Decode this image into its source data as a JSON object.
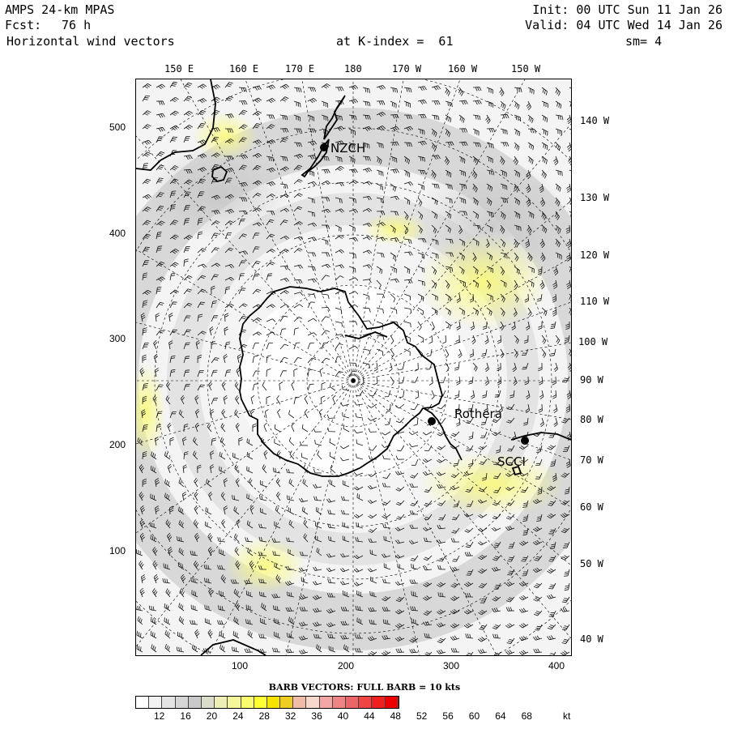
{
  "header": {
    "model": "AMPS 24-km MPAS",
    "fcst_label": "Fcst:",
    "fcst_value": "76 h",
    "field": "Horizontal wind vectors",
    "level": "at K-index =  61",
    "init": "Init: 00 UTC Sun 11 Jan 26",
    "valid": "Valid: 04 UTC Wed 14 Jan 26",
    "smoothing": "sm= 4"
  },
  "top_longitudes": [
    "150 E",
    "160 E",
    "170 E",
    "180",
    "170 W",
    "160 W",
    "150 W"
  ],
  "right_longitudes": [
    "140 W",
    "130 W",
    "120 W",
    "110 W",
    "100 W",
    "90 W",
    "80 W",
    "70 W",
    "60 W",
    "50 W",
    "40 W"
  ],
  "y_ticks": [
    "500",
    "400",
    "300",
    "200",
    "100"
  ],
  "x_ticks": [
    "100",
    "200",
    "300",
    "400"
  ],
  "stations": [
    {
      "label": "NZCH"
    },
    {
      "label": "Rothera"
    },
    {
      "label": "SCCI"
    }
  ],
  "legend": {
    "title": "BARB VECTORS:  FULL BARB = 10 kts",
    "unit": "kt",
    "ticks": [
      "12",
      "16",
      "20",
      "24",
      "28",
      "32",
      "36",
      "40",
      "44",
      "48",
      "52",
      "56",
      "60",
      "64",
      "68"
    ],
    "colors": [
      "#ffffff",
      "#f2f2f2",
      "#e4e4e4",
      "#d6d6d6",
      "#c9c9c9",
      "#dcdccc",
      "#eeeeb8",
      "#f6f69a",
      "#fafa6e",
      "#ffff33",
      "#f5e300",
      "#eecc22",
      "#f0bca8",
      "#f6d8cc",
      "#f2a6a6",
      "#ee8484",
      "#ea6666",
      "#ee4444",
      "#f02020",
      "#ee0000"
    ]
  }
}
